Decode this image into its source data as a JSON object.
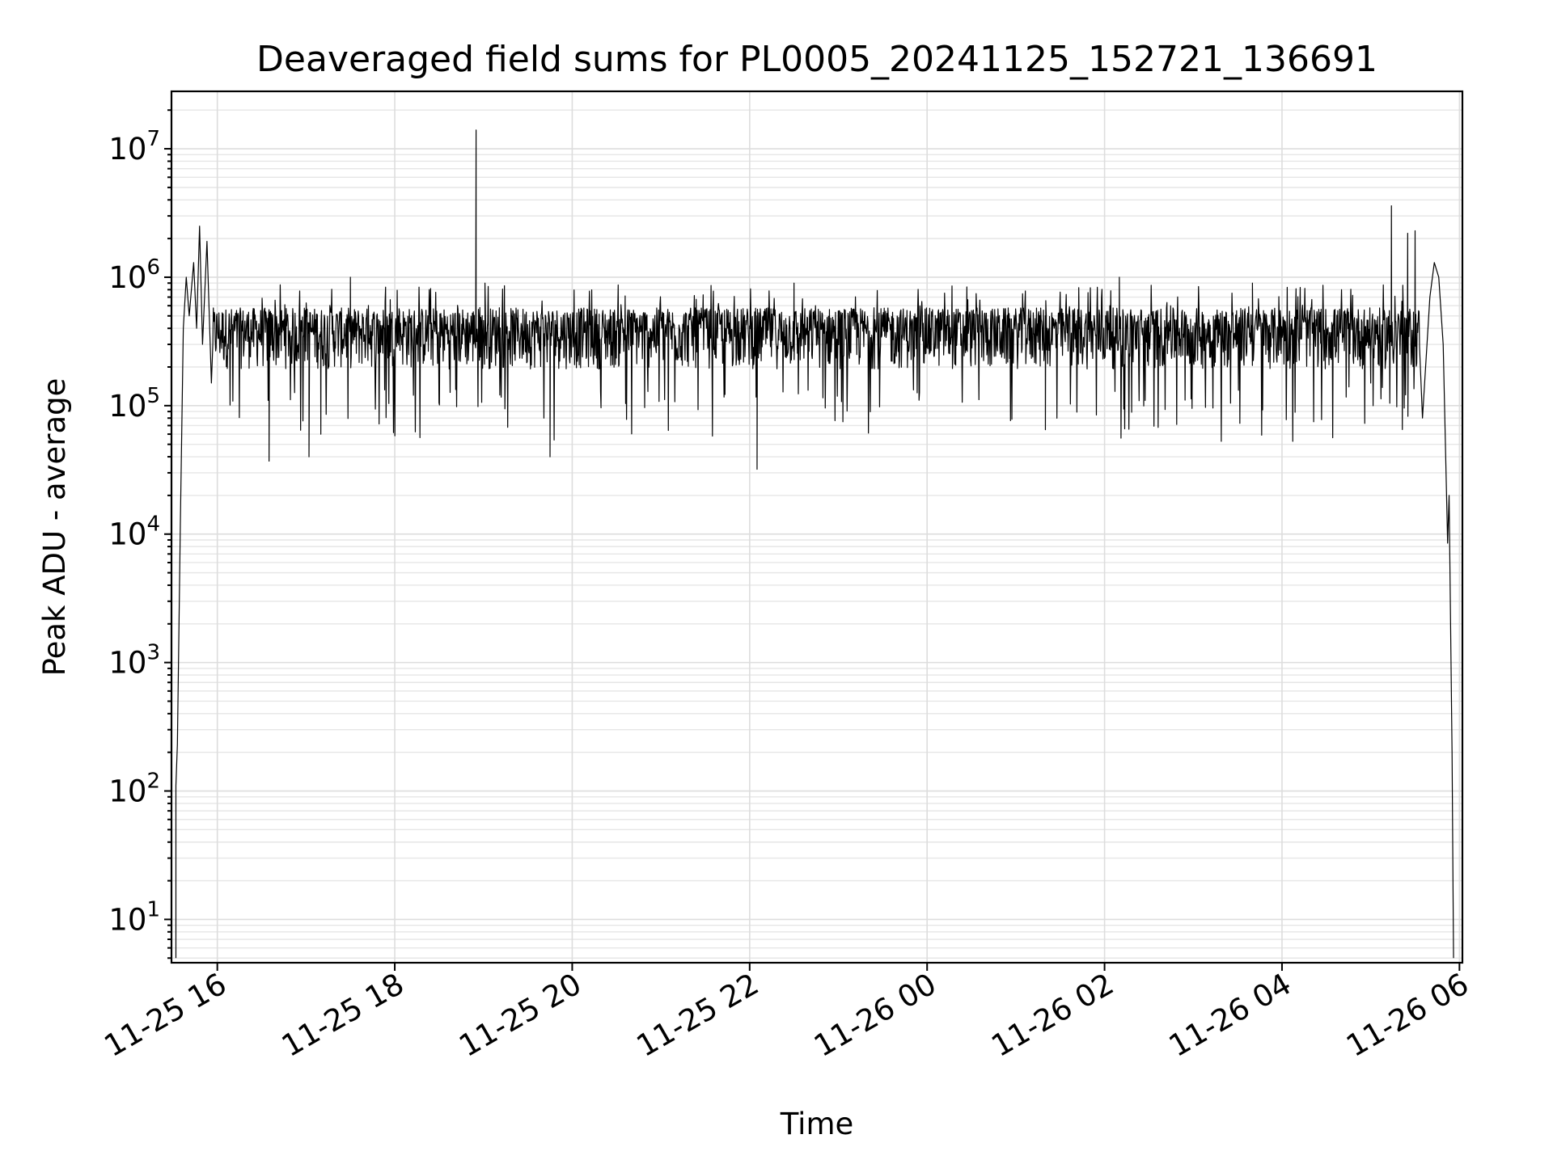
{
  "chart_data": {
    "type": "line",
    "title": "Deaveraged field sums for PL0005_20241125_152721_136691",
    "xlabel": "Time",
    "ylabel": "Peak ADU - average",
    "yscale": "log",
    "ylim": [
      4.6,
      28000000
    ],
    "xlim": [
      "2024-11-25 15:29",
      "2024-11-26 06:02"
    ],
    "grid": true,
    "x_ticks": [
      {
        "value": "2024-11-25 16:00",
        "label": "11-25 16"
      },
      {
        "value": "2024-11-25 18:00",
        "label": "11-25 18"
      },
      {
        "value": "2024-11-25 20:00",
        "label": "11-25 20"
      },
      {
        "value": "2024-11-25 22:00",
        "label": "11-25 22"
      },
      {
        "value": "2024-11-26 00:00",
        "label": "11-26 00"
      },
      {
        "value": "2024-11-26 02:00",
        "label": "11-26 02"
      },
      {
        "value": "2024-11-26 04:00",
        "label": "11-26 04"
      },
      {
        "value": "2024-11-26 06:00",
        "label": "11-26 06"
      }
    ],
    "y_ticks": [
      {
        "value": 10,
        "base": "10",
        "exp": "1"
      },
      {
        "value": 100,
        "base": "10",
        "exp": "2"
      },
      {
        "value": 1000,
        "base": "10",
        "exp": "3"
      },
      {
        "value": 10000,
        "base": "10",
        "exp": "4"
      },
      {
        "value": 100000,
        "base": "10",
        "exp": "5"
      },
      {
        "value": 1000000,
        "base": "10",
        "exp": "6"
      },
      {
        "value": 10000000,
        "base": "10",
        "exp": "7"
      }
    ],
    "series": [
      {
        "color": "#000000",
        "baseline": 350000,
        "points": [
          {
            "x": "2024-11-25 15:32",
            "y": 5
          },
          {
            "x": "2024-11-25 15:32",
            "y": 110
          },
          {
            "x": "2024-11-25 15:33",
            "y": 230
          },
          {
            "x": "2024-11-25 15:35",
            "y": 12000
          },
          {
            "x": "2024-11-25 15:37",
            "y": 400000
          },
          {
            "x": "2024-11-25 15:39",
            "y": 1000000
          },
          {
            "x": "2024-11-25 15:41",
            "y": 500000
          },
          {
            "x": "2024-11-25 15:44",
            "y": 1300000
          },
          {
            "x": "2024-11-25 15:46",
            "y": 400000
          },
          {
            "x": "2024-11-25 15:48",
            "y": 2500000
          },
          {
            "x": "2024-11-25 15:50",
            "y": 300000
          },
          {
            "x": "2024-11-25 15:53",
            "y": 1900000
          },
          {
            "x": "2024-11-25 15:56",
            "y": 150000
          },
          {
            "x": "2024-11-25 16:35",
            "y": 37000
          },
          {
            "x": "2024-11-25 17:02",
            "y": 40000
          },
          {
            "x": "2024-11-25 17:10",
            "y": 60000
          },
          {
            "x": "2024-11-25 17:30",
            "y": 1000000
          },
          {
            "x": "2024-11-25 18:55",
            "y": 14000000
          },
          {
            "x": "2024-11-25 19:01",
            "y": 900000
          },
          {
            "x": "2024-11-25 19:45",
            "y": 40000
          },
          {
            "x": "2024-11-25 22:05",
            "y": 32000
          },
          {
            "x": "2024-11-25 22:30",
            "y": 900000
          },
          {
            "x": "2024-11-26 01:20",
            "y": 65000
          },
          {
            "x": "2024-11-26 02:10",
            "y": 1000000
          },
          {
            "x": "2024-11-26 03:40",
            "y": 900000
          },
          {
            "x": "2024-11-26 05:00",
            "y": 150000
          },
          {
            "x": "2024-11-26 05:14",
            "y": 3600000
          },
          {
            "x": "2024-11-26 05:25",
            "y": 2200000
          },
          {
            "x": "2024-11-26 05:30",
            "y": 2300000
          },
          {
            "x": "2024-11-26 05:35",
            "y": 80000
          },
          {
            "x": "2024-11-26 05:40",
            "y": 700000
          },
          {
            "x": "2024-11-26 05:43",
            "y": 1300000
          },
          {
            "x": "2024-11-26 05:46",
            "y": 1000000
          },
          {
            "x": "2024-11-26 05:49",
            "y": 300000
          },
          {
            "x": "2024-11-26 05:52",
            "y": 8500
          },
          {
            "x": "2024-11-26 05:53",
            "y": 20000
          },
          {
            "x": "2024-11-26 05:55",
            "y": 200
          },
          {
            "x": "2024-11-26 05:56",
            "y": 5
          }
        ]
      }
    ]
  }
}
